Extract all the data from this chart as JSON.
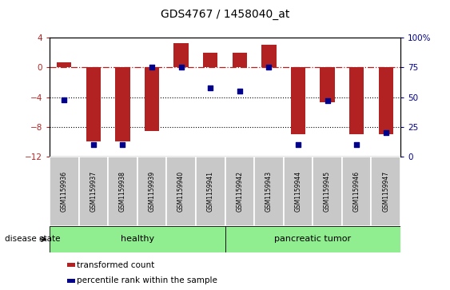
{
  "title": "GDS4767 / 1458040_at",
  "samples": [
    "GSM1159936",
    "GSM1159937",
    "GSM1159938",
    "GSM1159939",
    "GSM1159940",
    "GSM1159941",
    "GSM1159942",
    "GSM1159943",
    "GSM1159944",
    "GSM1159945",
    "GSM1159946",
    "GSM1159947"
  ],
  "bar_values": [
    0.7,
    -10.0,
    -10.0,
    -8.6,
    3.3,
    2.0,
    2.0,
    3.0,
    -9.0,
    -4.7,
    -9.0,
    -9.0
  ],
  "percentile_values": [
    48,
    10,
    10,
    75,
    75,
    58,
    55,
    75,
    10,
    47,
    10,
    20
  ],
  "bar_color": "#B22222",
  "scatter_color": "#00008B",
  "ylim_left": [
    -12,
    4
  ],
  "ylim_right": [
    0,
    100
  ],
  "yticks_left": [
    4,
    0,
    -4,
    -8,
    -12
  ],
  "yticks_right": [
    100,
    75,
    50,
    25,
    0
  ],
  "ytick_labels_right": [
    "100%",
    "75",
    "50",
    "25",
    "0"
  ],
  "dotted_lines": [
    -4,
    -8
  ],
  "healthy_label": "healthy",
  "tumor_label": "pancreatic tumor",
  "disease_state_label": "disease state",
  "legend_bar_label": "transformed count",
  "legend_scatter_label": "percentile rank within the sample",
  "healthy_color": "#90EE90",
  "box_color": "#C8C8C8",
  "bar_width": 0.5,
  "figsize": [
    5.63,
    3.63
  ],
  "dpi": 100
}
